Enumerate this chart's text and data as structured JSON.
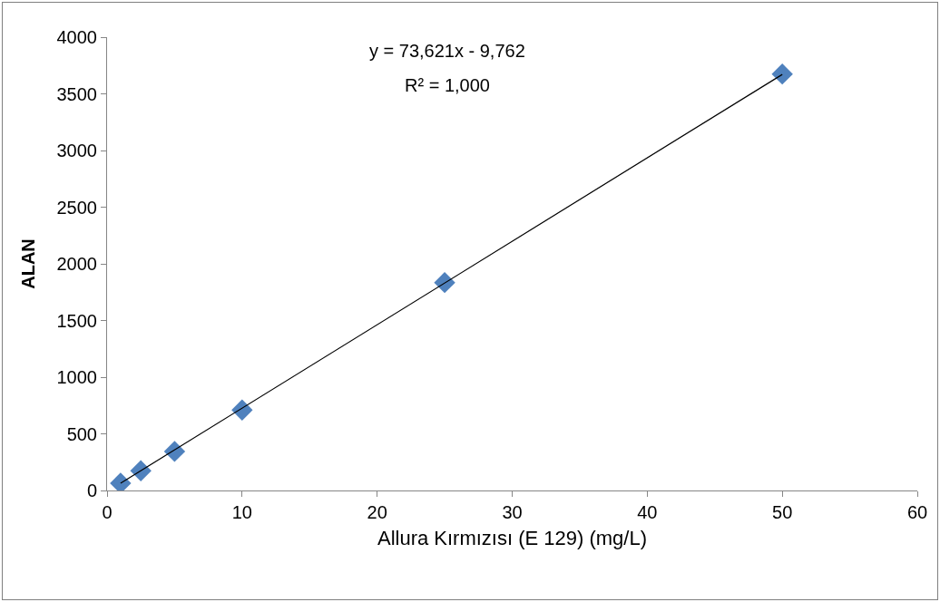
{
  "chart_data": {
    "type": "scatter",
    "xlabel": "Allura Kırmızısı (E 129) (mg/L)",
    "ylabel": "ALAN",
    "x": [
      1,
      2.5,
      5,
      10,
      25,
      50
    ],
    "series": [
      {
        "color": "#4f81bd",
        "values": [
          64,
          174,
          345,
          710,
          1835,
          3675
        ],
        "marker": "diamond"
      },
      {
        "type": "line",
        "x": [
          1,
          50
        ],
        "values": [
          64,
          3671
        ],
        "color": "#000000",
        "marker": "none",
        "line_style": "solid"
      }
    ],
    "annotations": [
      "y = 73,621x - 9,762",
      "R² = 1,000"
    ],
    "xlim": [
      0,
      60
    ],
    "xticks": [
      0,
      10,
      20,
      30,
      40,
      50,
      60
    ],
    "ylim": [
      0,
      4000
    ],
    "yticks": [
      0,
      500,
      1000,
      1500,
      2000,
      2500,
      3000,
      3500,
      4000
    ],
    "grid": false
  }
}
